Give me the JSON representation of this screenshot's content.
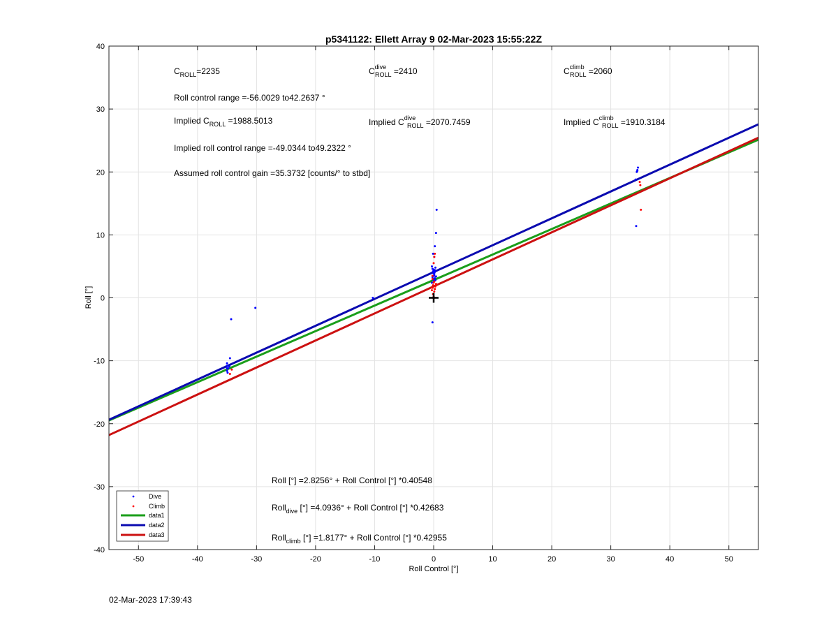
{
  "timestamp": "02-Mar-2023 17:39:43",
  "chart_data": {
    "type": "scatter",
    "title": "p5341122: Ellett Array 9 02-Mar-2023 15:55:22Z",
    "xlabel": "Roll Control [°]",
    "ylabel": "Roll [°]",
    "xlim": [
      -55,
      55
    ],
    "ylim": [
      -40,
      40
    ],
    "x_ticks": [
      -50,
      -40,
      -30,
      -20,
      -10,
      0,
      10,
      20,
      30,
      40,
      50
    ],
    "y_ticks": [
      -40,
      -30,
      -20,
      -10,
      0,
      10,
      20,
      30,
      40
    ],
    "grid": true,
    "legend_position": "bottom-left",
    "colors": {
      "dive": "#0000ff",
      "climb": "#ff0000",
      "data1": "#1a9e1a",
      "data2": "#0b0bb0",
      "data3": "#cc1111",
      "marker": "#000000"
    },
    "series": [
      {
        "name": "Dive",
        "kind": "points",
        "x": [
          -35.0,
          -35.0,
          -35.0,
          -35.0,
          -34.9,
          -34.8,
          -34.6,
          -34.5,
          -34.3,
          -30.2,
          -10.3,
          -0.3,
          -0.2,
          -0.1,
          0.0,
          0.1,
          0.2,
          0.3,
          -0.2,
          -0.1,
          0.0,
          0.1,
          0.2,
          -0.3,
          0.0,
          0.2,
          0.1,
          0.0,
          0.4,
          0.3,
          0.2,
          -0.1,
          0.4,
          0.5,
          0.1,
          -0.2,
          34.2,
          34.4,
          34.5,
          34.6,
          34.3,
          34.5
        ],
        "y": [
          -10.4,
          -10.8,
          -11.2,
          -11.6,
          -11.9,
          -11.2,
          -10.9,
          -9.6,
          -3.4,
          -1.6,
          0.0,
          5.0,
          4.6,
          4.2,
          3.9,
          3.5,
          4.4,
          4.8,
          3.3,
          3.0,
          2.7,
          3.7,
          4.1,
          2.4,
          4.3,
          3.1,
          3.9,
          4.5,
          3.4,
          2.8,
          8.2,
          7.0,
          10.3,
          14.0,
          6.5,
          -3.9,
          18.8,
          20.0,
          20.3,
          20.7,
          11.4,
          20.2
        ]
      },
      {
        "name": "Climb",
        "kind": "points",
        "x": [
          -34.5,
          -34.2,
          -0.3,
          -0.2,
          -0.1,
          0.0,
          0.1,
          0.2,
          -0.1,
          0.0,
          0.1,
          -0.2,
          0.0,
          0.1,
          0.2,
          -0.2,
          0.3,
          0.0,
          0.4,
          34.9,
          35.0,
          35.1
        ],
        "y": [
          -12.1,
          -11.4,
          1.2,
          1.6,
          2.0,
          2.4,
          1.0,
          1.4,
          0.6,
          0.2,
          2.6,
          3.0,
          5.5,
          6.5,
          7.0,
          3.5,
          1.8,
          -0.1,
          2.2,
          18.4,
          17.9,
          14.0
        ]
      },
      {
        "name": "data1",
        "kind": "line",
        "intercept": 2.8256,
        "slope": 0.40548,
        "x": [
          -55,
          55
        ],
        "y": [
          -19.48,
          25.13
        ]
      },
      {
        "name": "data2",
        "kind": "line",
        "intercept": 4.0936,
        "slope": 0.42683,
        "x": [
          -55,
          55
        ],
        "y": [
          -19.38,
          27.57
        ]
      },
      {
        "name": "data3",
        "kind": "line",
        "intercept": 1.8177,
        "slope": 0.42955,
        "x": [
          -55,
          55
        ],
        "y": [
          -21.81,
          25.44
        ]
      }
    ],
    "marker_point": {
      "x": 0,
      "y": 0,
      "symbol": "+"
    },
    "annotations": {
      "c_roll": {
        "base": "C",
        "sub": "ROLL",
        "value": "=2235"
      },
      "c_roll_dive": {
        "base": "C",
        "sup": "dive",
        "sub": "ROLL",
        "value": " =2410"
      },
      "c_roll_climb": {
        "base": "C",
        "sup": "climb",
        "sub": "ROLL",
        "value": " =2060"
      },
      "roll_control_range": "Roll control range =-56.0029 to42.2637 °",
      "implied_c_roll": {
        "prefix": "Implied C",
        "sub": "ROLL",
        "value": " =1988.5013"
      },
      "implied_c_roll_dive": {
        "prefix": "Implied C",
        "sup": "dive",
        "sub": "ROLL",
        "value": " =2070.7459"
      },
      "implied_c_roll_climb": {
        "prefix": "Implied C",
        "sup": "climb",
        "sub": "ROLL",
        "value": " =1910.3184"
      },
      "implied_roll_range": "Implied roll control range =-49.0344 to49.2322 °",
      "assumed_gain": "Assumed roll control gain =35.3732 [counts/° to stbd]",
      "fit_all": {
        "prefix": "Roll [°] =2.8256° + Roll Control [°] *0.40548"
      },
      "fit_dive": {
        "prefix": "Roll",
        "sub": "dive",
        "rest": " [°] =4.0936° + Roll Control [°] *0.42683"
      },
      "fit_climb": {
        "prefix": "Roll",
        "sub": "climb",
        "rest": " [°] =1.8177° + Roll Control [°] *0.42955"
      }
    }
  }
}
